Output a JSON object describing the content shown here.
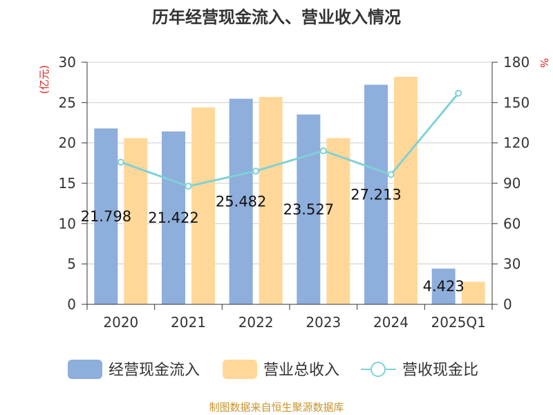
{
  "chart_data": {
    "type": "bar",
    "title": "历年经营现金流入、营业收入情况",
    "categories": [
      "2020",
      "2021",
      "2022",
      "2023",
      "2024",
      "2025Q1"
    ],
    "series": [
      {
        "name": "经营现金流入",
        "type": "bar",
        "axis": "left",
        "color": "#8eaedb",
        "values": [
          21.798,
          21.422,
          25.482,
          23.527,
          27.213,
          4.423
        ],
        "data_labels": [
          "21.798",
          "21.422",
          "25.482",
          "23.527",
          "27.213",
          "4.423"
        ]
      },
      {
        "name": "营业总收入",
        "type": "bar",
        "axis": "left",
        "color": "#ffd899",
        "values": [
          20.6,
          24.4,
          25.7,
          20.6,
          28.2,
          2.8
        ]
      },
      {
        "name": "营收现金比",
        "type": "line",
        "axis": "right",
        "color": "#7fd1d6",
        "values": [
          105.7,
          87.8,
          99.1,
          114.2,
          96.5,
          157.0
        ]
      }
    ],
    "ylabel_left": "(亿元)",
    "ylabel_right": "%",
    "ylim_left": [
      0,
      30
    ],
    "ylim_right": [
      0,
      180
    ],
    "yticks_left": [
      "0",
      "5",
      "10",
      "15",
      "20",
      "25",
      "30"
    ],
    "yticks_right": [
      "0",
      "30",
      "60",
      "90",
      "120",
      "150",
      "180"
    ],
    "grid": true,
    "legend_position": "bottom",
    "source": "制图数据来自恒生聚源数据库",
    "unit_color": "#e02020"
  }
}
